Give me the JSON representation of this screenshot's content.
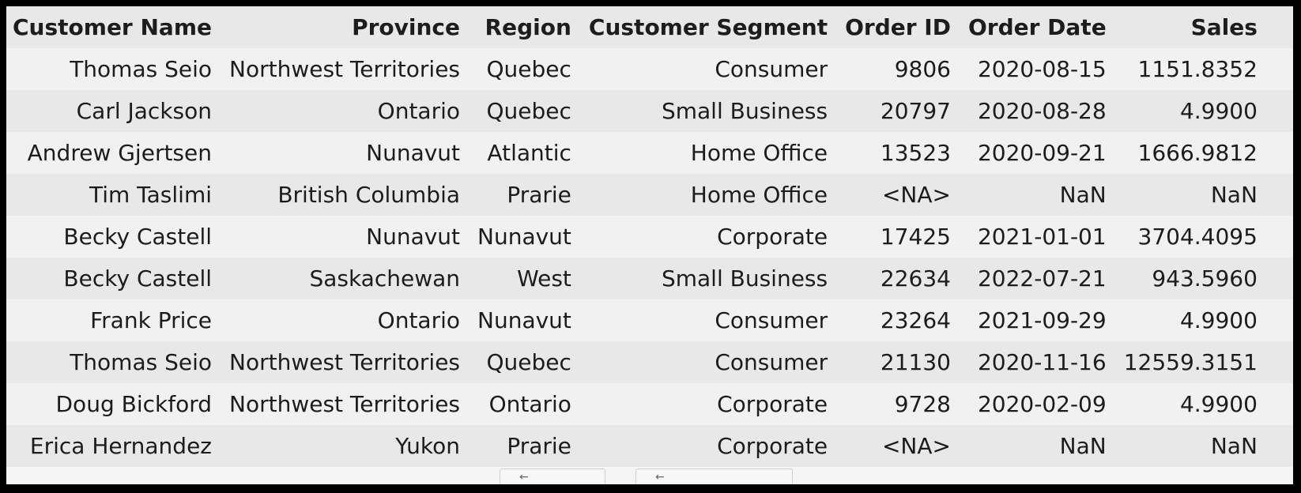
{
  "table": {
    "headers": [
      "Customer Name",
      "Province",
      "Region",
      "Customer Segment",
      "Order ID",
      "Order Date",
      "Sales"
    ],
    "rows": [
      [
        "Thomas Seio",
        "Northwest Territories",
        "Quebec",
        "Consumer",
        "9806",
        "2020-08-15",
        "1151.8352"
      ],
      [
        "Carl Jackson",
        "Ontario",
        "Quebec",
        "Small Business",
        "20797",
        "2020-08-28",
        "4.9900"
      ],
      [
        "Andrew Gjertsen",
        "Nunavut",
        "Atlantic",
        "Home Office",
        "13523",
        "2020-09-21",
        "1666.9812"
      ],
      [
        "Tim Taslimi",
        "British Columbia",
        "Prarie",
        "Home Office",
        "<NA>",
        "NaN",
        "NaN"
      ],
      [
        "Becky Castell",
        "Nunavut",
        "Nunavut",
        "Corporate",
        "17425",
        "2021-01-01",
        "3704.4095"
      ],
      [
        "Becky Castell",
        "Saskachewan",
        "West",
        "Small Business",
        "22634",
        "2022-07-21",
        "943.5960"
      ],
      [
        "Frank Price",
        "Ontario",
        "Nunavut",
        "Consumer",
        "23264",
        "2021-09-29",
        "4.9900"
      ],
      [
        "Thomas Seio",
        "Northwest Territories",
        "Quebec",
        "Consumer",
        "21130",
        "2020-11-16",
        "12559.3151"
      ],
      [
        "Doug Bickford",
        "Northwest Territories",
        "Ontario",
        "Corporate",
        "9728",
        "2020-02-09",
        "4.9900"
      ],
      [
        "Erica Hernandez",
        "Yukon",
        "Prarie",
        "Corporate",
        "<NA>",
        "NaN",
        "NaN"
      ]
    ]
  },
  "pager": {
    "prev_glyph": "←",
    "next_glyph": "←"
  }
}
